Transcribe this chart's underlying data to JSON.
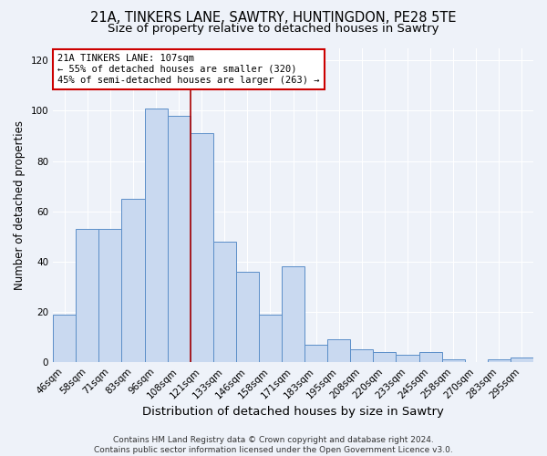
{
  "title1": "21A, TINKERS LANE, SAWTRY, HUNTINGDON, PE28 5TE",
  "title2": "Size of property relative to detached houses in Sawtry",
  "xlabel": "Distribution of detached houses by size in Sawtry",
  "ylabel": "Number of detached properties",
  "categories": [
    "46sqm",
    "58sqm",
    "71sqm",
    "83sqm",
    "96sqm",
    "108sqm",
    "121sqm",
    "133sqm",
    "146sqm",
    "158sqm",
    "171sqm",
    "183sqm",
    "195sqm",
    "208sqm",
    "220sqm",
    "233sqm",
    "245sqm",
    "258sqm",
    "270sqm",
    "283sqm",
    "295sqm"
  ],
  "values": [
    19,
    53,
    53,
    65,
    101,
    98,
    91,
    48,
    36,
    19,
    38,
    7,
    9,
    5,
    4,
    3,
    4,
    1,
    0,
    1,
    2
  ],
  "bar_color": "#c9d9f0",
  "bar_edge_color": "#5b8ec8",
  "bar_edge_width": 0.7,
  "vline_x": 5.5,
  "vline_color": "#aa0000",
  "annotation_text": "21A TINKERS LANE: 107sqm\n← 55% of detached houses are smaller (320)\n45% of semi-detached houses are larger (263) →",
  "annotation_box_color": "#ffffff",
  "annotation_box_edge": "#cc0000",
  "ylim": [
    0,
    125
  ],
  "yticks": [
    0,
    20,
    40,
    60,
    80,
    100,
    120
  ],
  "bg_color": "#eef2f9",
  "footer": "Contains HM Land Registry data © Crown copyright and database right 2024.\nContains public sector information licensed under the Open Government Licence v3.0.",
  "grid_color": "#ffffff",
  "title1_fontsize": 10.5,
  "title2_fontsize": 9.5,
  "xlabel_fontsize": 9.5,
  "ylabel_fontsize": 8.5,
  "tick_fontsize": 7.5,
  "annot_fontsize": 7.5,
  "footer_fontsize": 6.5
}
